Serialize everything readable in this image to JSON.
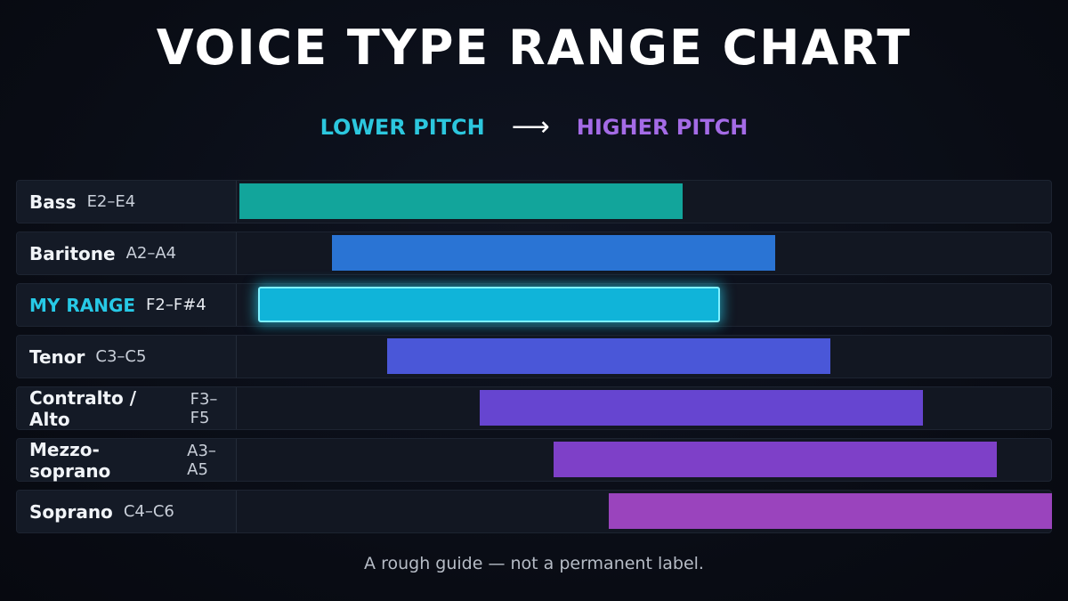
{
  "title": "VOICE TYPE RANGE CHART",
  "pitch_axis": {
    "lower_label": "LOWER PITCH",
    "arrow": "⟶",
    "higher_label": "HIGHER PITCH"
  },
  "caption": "A rough guide — not a permanent label.",
  "colors": {
    "lower_label": "#2cc7de",
    "higher_label": "#a46be6",
    "highlight": "#27c9e6"
  },
  "chart_data": {
    "type": "bar",
    "orientation": "horizontal-range",
    "pitch_order": [
      "E2",
      "F2",
      "A2",
      "C3",
      "E3",
      "F3",
      "A3",
      "C4",
      "E4",
      "F#4",
      "A4",
      "C5",
      "F5",
      "A5",
      "C6"
    ],
    "series": [
      {
        "name": "Bass",
        "range": "E2–E4",
        "low": "E2",
        "high": "E4",
        "color": "#12a59b"
      },
      {
        "name": "Baritone",
        "range": "A2–A4",
        "low": "A2",
        "high": "A4",
        "color": "#2a74d4"
      },
      {
        "name": "MY RANGE",
        "range": "F2–F#4",
        "low": "F2",
        "high": "F#4",
        "color": "#10b4d9",
        "highlight": true
      },
      {
        "name": "Tenor",
        "range": "C3–C5",
        "low": "C3",
        "high": "C5",
        "color": "#4a57d8"
      },
      {
        "name": "Contralto / Alto",
        "range": "F3–F5",
        "low": "F3",
        "high": "F5",
        "color": "#6645d0"
      },
      {
        "name": "Mezzo-soprano",
        "range": "A3–A5",
        "low": "A3",
        "high": "A5",
        "color": "#7e40c8"
      },
      {
        "name": "Soprano",
        "range": "C4–C6",
        "low": "C4",
        "high": "C6",
        "color": "#9a44bd"
      }
    ]
  }
}
